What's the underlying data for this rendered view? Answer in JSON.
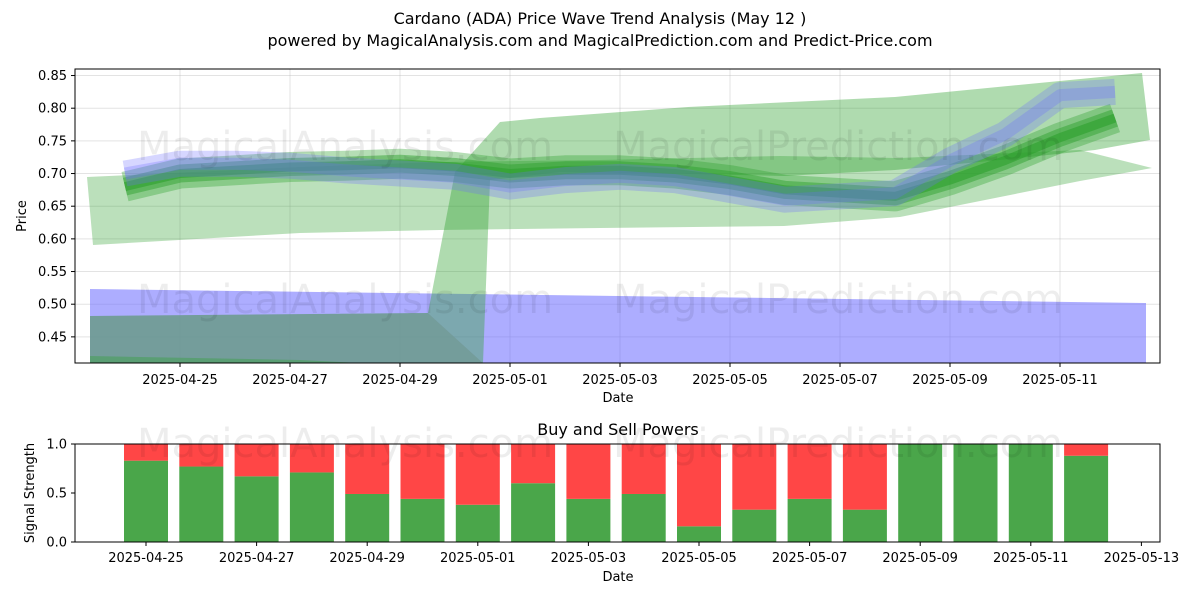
{
  "title": "Cardano (ADA) Price Wave Trend Analysis (May 12 )",
  "subtitle": "powered by MagicalAnalysis.com and MagicalPrediction.com and Predict-Price.com",
  "watermarks": [
    "MagicalAnalysis.com",
    "MagicalPrediction.com"
  ],
  "colors": {
    "green": "#2ca02c",
    "blue": "#6a6aff",
    "buy": "#4aa64a",
    "sell": "#ff4646"
  },
  "chart_data": [
    {
      "type": "area",
      "title": "",
      "xlabel": "Date",
      "ylabel": "Price",
      "ylim": [
        0.41,
        0.86
      ],
      "yticks": [
        "0.45",
        "0.50",
        "0.55",
        "0.60",
        "0.65",
        "0.70",
        "0.75",
        "0.80",
        "0.85"
      ],
      "xticks": [
        "2025-04-25",
        "2025-04-27",
        "2025-04-29",
        "2025-05-01",
        "2025-05-03",
        "2025-05-05",
        "2025-05-07",
        "2025-05-09",
        "2025-05-11"
      ],
      "grid": true,
      "series": [
        {
          "color": "green",
          "dates": [
            "2025-04-24",
            "2025-04-25",
            "2025-04-26",
            "2025-04-27",
            "2025-04-28",
            "2025-04-29",
            "2025-04-30",
            "2025-05-01",
            "2025-05-02",
            "2025-05-03",
            "2025-05-04",
            "2025-05-05",
            "2025-05-06",
            "2025-05-07",
            "2025-05-08",
            "2025-05-09",
            "2025-05-10",
            "2025-05-11",
            "2025-05-12"
          ],
          "values": [
            0.68,
            0.7,
            0.705,
            0.71,
            0.712,
            0.715,
            0.71,
            0.7,
            0.705,
            0.705,
            0.7,
            0.69,
            0.675,
            0.67,
            0.665,
            0.69,
            0.72,
            0.755,
            0.785
          ]
        },
        {
          "color": "blue",
          "dates": [
            "2025-04-24",
            "2025-04-25",
            "2025-04-26",
            "2025-04-27",
            "2025-04-28",
            "2025-04-29",
            "2025-04-30",
            "2025-05-01",
            "2025-05-02",
            "2025-05-03",
            "2025-05-04",
            "2025-05-05",
            "2025-05-06",
            "2025-05-07",
            "2025-05-08",
            "2025-05-09",
            "2025-05-10",
            "2025-05-11",
            "2025-05-12"
          ],
          "values": [
            0.7,
            0.715,
            0.715,
            0.712,
            0.705,
            0.7,
            0.695,
            0.68,
            0.69,
            0.695,
            0.69,
            0.675,
            0.66,
            0.665,
            0.67,
            0.72,
            0.76,
            0.82,
            0.825
          ]
        }
      ]
    },
    {
      "type": "bar",
      "title": "Buy and Sell Powers",
      "xlabel": "Date",
      "ylabel": "Signal Strength",
      "ylim": [
        0,
        1.0
      ],
      "yticks": [
        "0.0",
        "0.5",
        "1.0"
      ],
      "xticks": [
        "2025-04-25",
        "2025-04-27",
        "2025-04-29",
        "2025-05-01",
        "2025-05-03",
        "2025-05-05",
        "2025-05-07",
        "2025-05-09",
        "2025-05-11",
        "2025-05-13"
      ],
      "categories": [
        "2025-04-25",
        "2025-04-26",
        "2025-04-27",
        "2025-04-28",
        "2025-04-29",
        "2025-04-30",
        "2025-05-01",
        "2025-05-02",
        "2025-05-03",
        "2025-05-04",
        "2025-05-05",
        "2025-05-06",
        "2025-05-07",
        "2025-05-08",
        "2025-05-09",
        "2025-05-10",
        "2025-05-11",
        "2025-05-12"
      ],
      "series": [
        {
          "color": "buy",
          "values": [
            0.83,
            0.77,
            0.67,
            0.71,
            0.49,
            0.44,
            0.38,
            0.6,
            0.44,
            0.49,
            0.16,
            0.33,
            0.44,
            0.33,
            1.0,
            1.0,
            1.0,
            0.88
          ]
        },
        {
          "color": "sell",
          "values": [
            0.17,
            0.23,
            0.33,
            0.29,
            0.51,
            0.56,
            0.62,
            0.4,
            0.56,
            0.51,
            0.84,
            0.67,
            0.56,
            0.67,
            0.0,
            0.0,
            0.0,
            0.12
          ]
        }
      ]
    }
  ]
}
